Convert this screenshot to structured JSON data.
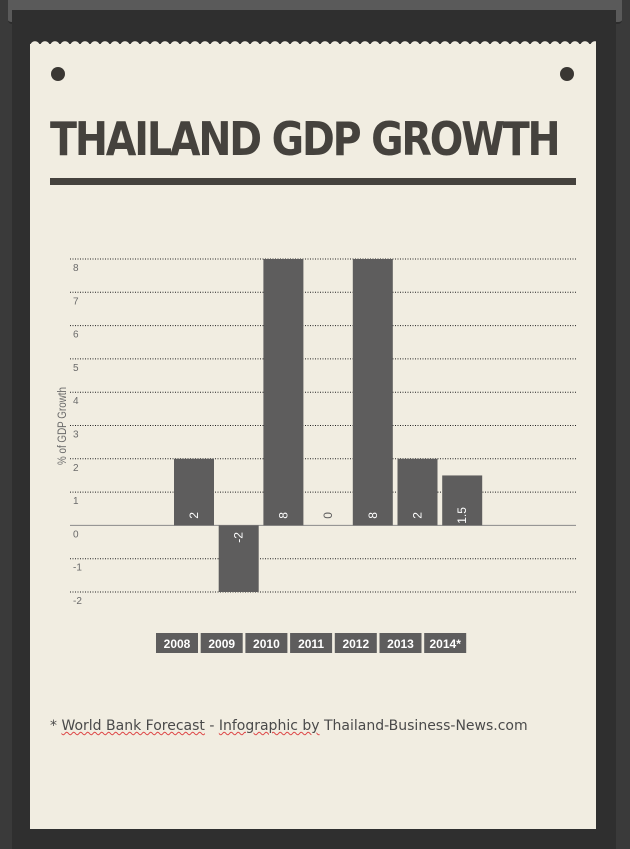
{
  "title": "THAILAND GDP GROWTH",
  "footnote": {
    "star": "*",
    "text_1": "World Bank Forecast",
    "sep": " - ",
    "text_2": "Infographic by",
    "text_3": " Thailand-Business-News.com"
  },
  "chart_data": {
    "type": "bar",
    "title": "THAILAND GDP GROWTH",
    "ylabel": "% of GDP Growth",
    "xlabel": "",
    "categories": [
      "2008",
      "2009",
      "2010",
      "2011",
      "2012",
      "2013",
      "2014*"
    ],
    "values": [
      2,
      -2,
      8,
      0,
      8,
      2,
      1.5
    ],
    "value_labels": [
      "2",
      "-2",
      "8",
      "0",
      "8",
      "2",
      "1.5"
    ],
    "yticks": [
      8,
      7,
      6,
      5,
      4,
      3,
      2,
      1,
      0,
      -1,
      -2
    ],
    "ylim": [
      -2,
      8
    ],
    "grid": true,
    "legend": "none",
    "colors": {
      "bar": "#5e5d5d",
      "label_bg": "#5e5d5d",
      "text": "#6a6a6a"
    }
  }
}
